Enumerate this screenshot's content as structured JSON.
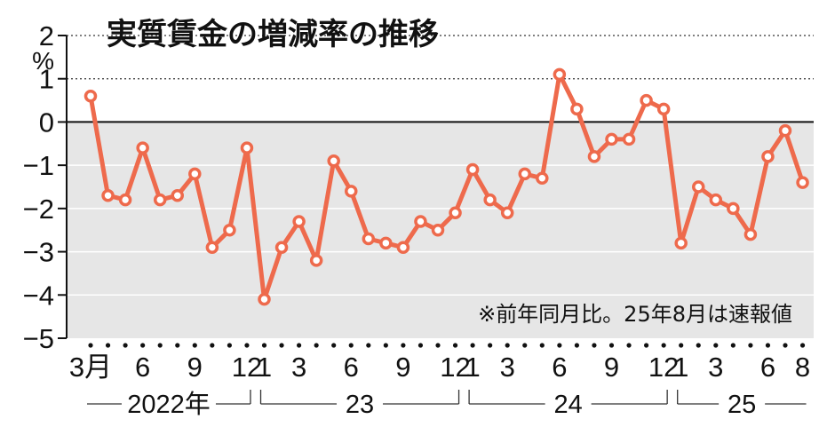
{
  "title": "実質賃金の増減率の推移",
  "note": "※前年同月比。25年8月は速報値",
  "colors": {
    "line": "#ee6a4c",
    "plot_bg": "#e6e6e6",
    "axis": "#111111",
    "marker_fill": "#ffffff"
  },
  "chart_data": {
    "type": "line",
    "title": "実質賃金の増減率の推移",
    "ylabel": "%",
    "ylim": [
      -5,
      2
    ],
    "yticks": [
      2,
      1,
      0,
      -1,
      -2,
      -3,
      -4,
      -5
    ],
    "x_tick_labels": [
      {
        "index": 0,
        "label": "3月"
      },
      {
        "index": 3,
        "label": "6"
      },
      {
        "index": 6,
        "label": "9"
      },
      {
        "index": 9,
        "label": "12"
      },
      {
        "index": 10,
        "label": "1"
      },
      {
        "index": 12,
        "label": "3"
      },
      {
        "index": 15,
        "label": "6"
      },
      {
        "index": 18,
        "label": "9"
      },
      {
        "index": 21,
        "label": "12"
      },
      {
        "index": 22,
        "label": "1"
      },
      {
        "index": 24,
        "label": "3"
      },
      {
        "index": 27,
        "label": "6"
      },
      {
        "index": 30,
        "label": "9"
      },
      {
        "index": 33,
        "label": "12"
      },
      {
        "index": 34,
        "label": "1"
      },
      {
        "index": 36,
        "label": "3"
      },
      {
        "index": 39,
        "label": "6"
      },
      {
        "index": 41,
        "label": "8"
      }
    ],
    "years": [
      {
        "label": "2022年",
        "start": 0,
        "end": 9
      },
      {
        "label": "23",
        "start": 10,
        "end": 21
      },
      {
        "label": "24",
        "start": 22,
        "end": 33
      },
      {
        "label": "25",
        "start": 34,
        "end": 41
      }
    ],
    "x": [
      "2022-03",
      "2022-04",
      "2022-05",
      "2022-06",
      "2022-07",
      "2022-08",
      "2022-09",
      "2022-10",
      "2022-11",
      "2022-12",
      "2023-01",
      "2023-02",
      "2023-03",
      "2023-04",
      "2023-05",
      "2023-06",
      "2023-07",
      "2023-08",
      "2023-09",
      "2023-10",
      "2023-11",
      "2023-12",
      "2024-01",
      "2024-02",
      "2024-03",
      "2024-04",
      "2024-05",
      "2024-06",
      "2024-07",
      "2024-08",
      "2024-09",
      "2024-10",
      "2024-11",
      "2024-12",
      "2025-01",
      "2025-02",
      "2025-03",
      "2025-04",
      "2025-05",
      "2025-06",
      "2025-07",
      "2025-08"
    ],
    "series": [
      {
        "values": [
          0.6,
          -1.7,
          -1.8,
          -0.6,
          -1.8,
          -1.7,
          -1.2,
          -2.9,
          -2.5,
          -0.6,
          -4.1,
          -2.9,
          -2.3,
          -3.2,
          -0.9,
          -1.6,
          -2.7,
          -2.8,
          -2.9,
          -2.3,
          -2.5,
          -2.1,
          -1.1,
          -1.8,
          -2.1,
          -1.2,
          -1.3,
          1.1,
          0.3,
          -0.8,
          -0.4,
          -0.4,
          0.5,
          0.3,
          -2.8,
          -1.5,
          -1.8,
          -2.0,
          -2.6,
          -0.8,
          -0.2,
          -1.4
        ]
      }
    ],
    "grid": true,
    "gridlines": "dotted above 0, solid white below 0, shaded background below 0"
  }
}
